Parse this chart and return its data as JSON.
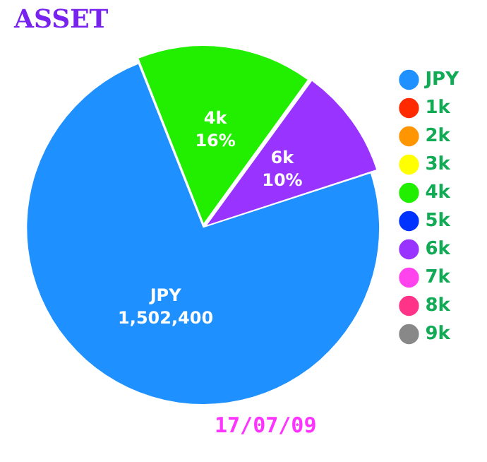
{
  "chart_data": {
    "type": "pie",
    "title": "ASSET",
    "categories": [
      "JPY",
      "1k",
      "2k",
      "3k",
      "4k",
      "5k",
      "6k",
      "7k",
      "8k",
      "9k"
    ],
    "values": [
      74,
      0,
      0,
      0,
      16,
      0,
      10,
      0,
      0,
      0
    ],
    "value_labels": [
      null,
      null,
      null,
      null,
      "16%",
      null,
      "10%",
      null,
      null,
      null
    ],
    "colors": [
      "#1e90ff",
      "#ff2a00",
      "#ff9500",
      "#ffff00",
      "#22ee00",
      "#0033ff",
      "#9933ff",
      "#ff44ee",
      "#ff3388",
      "#888888"
    ],
    "legend": "right",
    "annotations": [
      {
        "text": "1,502,400",
        "x": "JPY"
      },
      "17/07/09"
    ]
  }
}
